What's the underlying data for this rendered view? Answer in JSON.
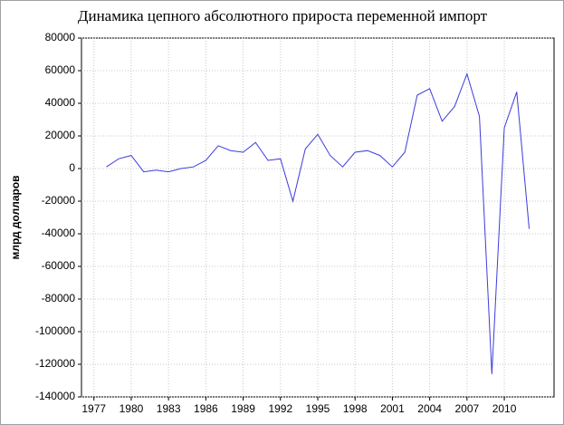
{
  "chart_data": {
    "type": "line",
    "title": "Динамика цепного абсолютного прироста переменной импорт",
    "y_label": "млрд долларов",
    "x": [
      1978,
      1979,
      1980,
      1981,
      1982,
      1983,
      1984,
      1985,
      1986,
      1987,
      1988,
      1989,
      1990,
      1991,
      1992,
      1993,
      1994,
      1995,
      1996,
      1997,
      1998,
      1999,
      2000,
      2001,
      2002,
      2003,
      2004,
      2005,
      2006,
      2007,
      2008,
      2009,
      2010,
      2011,
      2012
    ],
    "series": [
      {
        "color": "#3c3cdc",
        "values": [
          1000,
          6000,
          8000,
          -2000,
          -1000,
          -2000,
          0,
          1000,
          5000,
          14000,
          11000,
          10000,
          16000,
          5000,
          6000,
          -20000,
          12000,
          21000,
          8000,
          1000,
          10000,
          11000,
          8000,
          1000,
          10000,
          45000,
          49000,
          29000,
          38000,
          58000,
          32000,
          -126000,
          25000,
          47000,
          -37000
        ]
      }
    ],
    "xlim": [
      1976,
      2014
    ],
    "xticks": [
      1977,
      1980,
      1983,
      1986,
      1989,
      1992,
      1995,
      1998,
      2001,
      2004,
      2007,
      2010
    ],
    "ylim": [
      -140000,
      80000
    ],
    "yticks": [
      -140000,
      -120000,
      -100000,
      -80000,
      -60000,
      -40000,
      -20000,
      0,
      20000,
      40000,
      60000,
      80000
    ],
    "grid": true
  }
}
